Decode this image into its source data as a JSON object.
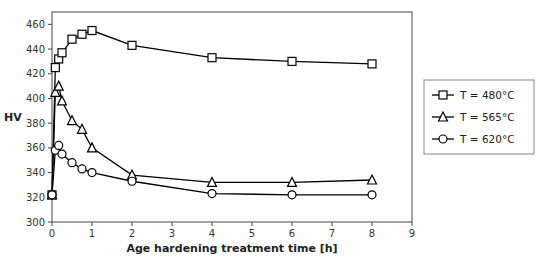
{
  "chart_data": {
    "type": "line",
    "title": "",
    "xlabel": "Age hardening treatment time [h]",
    "ylabel": "HV",
    "xlim": [
      0,
      9
    ],
    "ylim": [
      300,
      470
    ],
    "xticks": [
      0,
      1,
      2,
      3,
      4,
      5,
      6,
      7,
      8,
      9
    ],
    "yticks": [
      300,
      320,
      340,
      360,
      380,
      400,
      420,
      440,
      460
    ],
    "grid": false,
    "legend": "right",
    "series": [
      {
        "name": "T = 480°C",
        "color": "#000000",
        "marker": "square",
        "line_style": "solid",
        "x": [
          0,
          0.083,
          0.167,
          0.25,
          0.5,
          0.75,
          1.0,
          2.0,
          4.0,
          6.0,
          8.0
        ],
        "values": [
          322,
          425,
          432,
          437,
          448,
          452,
          455,
          443,
          433,
          430,
          428
        ]
      },
      {
        "name": "T = 565°C",
        "color": "#000000",
        "marker": "triangle",
        "line_style": "solid",
        "x": [
          0,
          0.083,
          0.167,
          0.25,
          0.5,
          0.75,
          1.0,
          2.0,
          4.0,
          6.0,
          8.0
        ],
        "values": [
          322,
          405,
          410,
          398,
          382,
          375,
          360,
          338,
          332,
          332,
          334
        ]
      },
      {
        "name": "T = 620°C",
        "color": "#000000",
        "marker": "circle",
        "line_style": "solid",
        "x": [
          0,
          0.083,
          0.167,
          0.25,
          0.5,
          0.75,
          1.0,
          2.0,
          4.0,
          6.0,
          8.0
        ],
        "values": [
          322,
          358,
          362,
          355,
          348,
          343,
          340,
          333,
          323,
          322,
          322
        ]
      }
    ]
  }
}
